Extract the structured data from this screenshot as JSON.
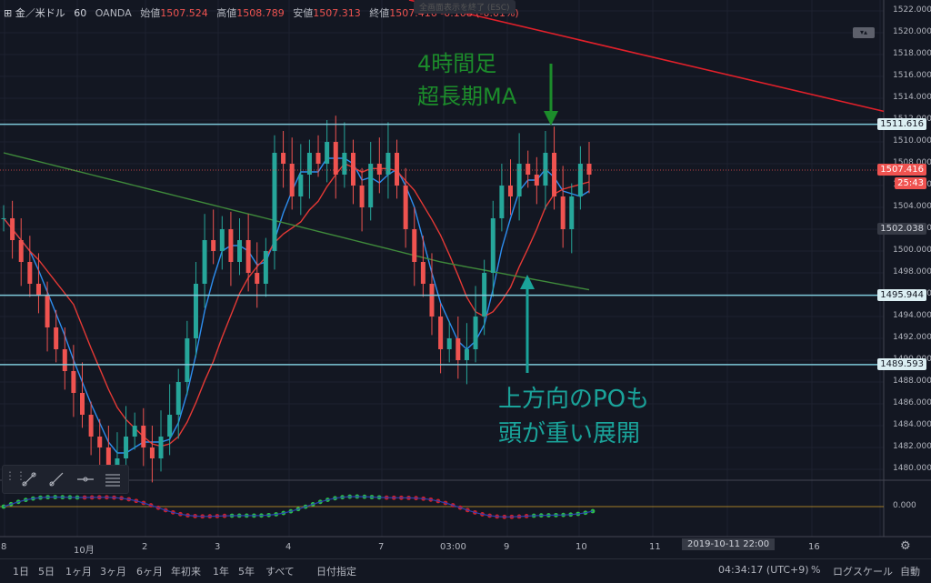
{
  "legend": {
    "symbol": "金／米ドル",
    "interval": "60",
    "broker": "OANDA",
    "open_label": "始値",
    "open": "1507.524",
    "high_label": "高値",
    "high": "1508.789",
    "low_label": "安値",
    "low": "1507.313",
    "close_label": "終値",
    "close": "1507.416",
    "change": "-0.108 (-0.01%)"
  },
  "exit_fullscreen": "全画面表示を終了 (ESC)",
  "annotations": {
    "green_line1": "4時間足",
    "green_line2": "超長期MA",
    "teal_line1": "上方向のPOも",
    "teal_line2": "頭が重い展開"
  },
  "price_axis": {
    "ticks": [
      "1522.000",
      "1520.000",
      "1518.000",
      "1516.000",
      "1514.000",
      "1512.000",
      "1510.000",
      "1508.000",
      "1506.000",
      "1504.000",
      "1502.000",
      "1500.000",
      "1498.000",
      "1496.000",
      "1494.000",
      "1492.000",
      "1490.000",
      "1488.000",
      "1486.000",
      "1484.000",
      "1482.000",
      "1480.000"
    ],
    "level_tags": [
      {
        "label": "1511.616",
        "kind": "hline"
      },
      {
        "label": "1507.416",
        "kind": "last"
      },
      {
        "label": "25:43",
        "kind": "countdown"
      },
      {
        "label": "1502.038",
        "kind": "cursor"
      },
      {
        "label": "1495.944",
        "kind": "hline"
      },
      {
        "label": "1489.593",
        "kind": "hline"
      }
    ],
    "osc_tick": "0.000"
  },
  "time_axis": {
    "labels": [
      "8",
      "10月",
      "2",
      "3",
      "4",
      "7",
      "03:00",
      "9",
      "10",
      "11",
      "03:00",
      "16"
    ],
    "cursor_time": "2019-10-11  22:00"
  },
  "bottom": {
    "ranges": [
      "1日",
      "5日",
      "1ヶ月",
      "3ヶ月",
      "6ヶ月",
      "年初来",
      "1年",
      "5年",
      "すべて"
    ],
    "goto_date": "日付指定",
    "clock": "04:34:17 (UTC+9)",
    "percent": "%",
    "log": "ログスケール",
    "auto": "自動"
  },
  "colors": {
    "bg": "#131722",
    "up": "#26a69a",
    "down": "#ef5350",
    "hline": "#7ec8d8",
    "ma_blue": "#2d8ef0",
    "ma_red": "#e53935",
    "ma_green": "#3f8a3b",
    "annot_green": "#1c8c2b",
    "annot_teal": "#1aa39a"
  },
  "chart_data": {
    "type": "candlestick",
    "title": "金／米ドル 60 OANDA",
    "ylim": [
      1479,
      1523
    ],
    "horizontal_lines": [
      1511.616,
      1495.944,
      1489.593
    ],
    "last_price": 1507.416,
    "candles_close_path": [
      1503,
      1501,
      1499,
      1497,
      1496,
      1493,
      1491,
      1489,
      1487,
      1485,
      1483,
      1482,
      1480,
      1481,
      1483,
      1484,
      1482,
      1481,
      1483,
      1485,
      1488,
      1492,
      1497,
      1501,
      1500,
      1502,
      1499,
      1501,
      1498,
      1497,
      1500,
      1509,
      1508,
      1505,
      1507,
      1509,
      1508,
      1510,
      1507,
      1509,
      1506,
      1504,
      1508,
      1507,
      1509,
      1506,
      1502,
      1499,
      1497,
      1494,
      1491,
      1492,
      1490,
      1491,
      1494,
      1498,
      1503,
      1506,
      1505,
      1508,
      1507,
      1506,
      1509,
      1505,
      1502,
      1505,
      1508,
      1507
    ]
  }
}
